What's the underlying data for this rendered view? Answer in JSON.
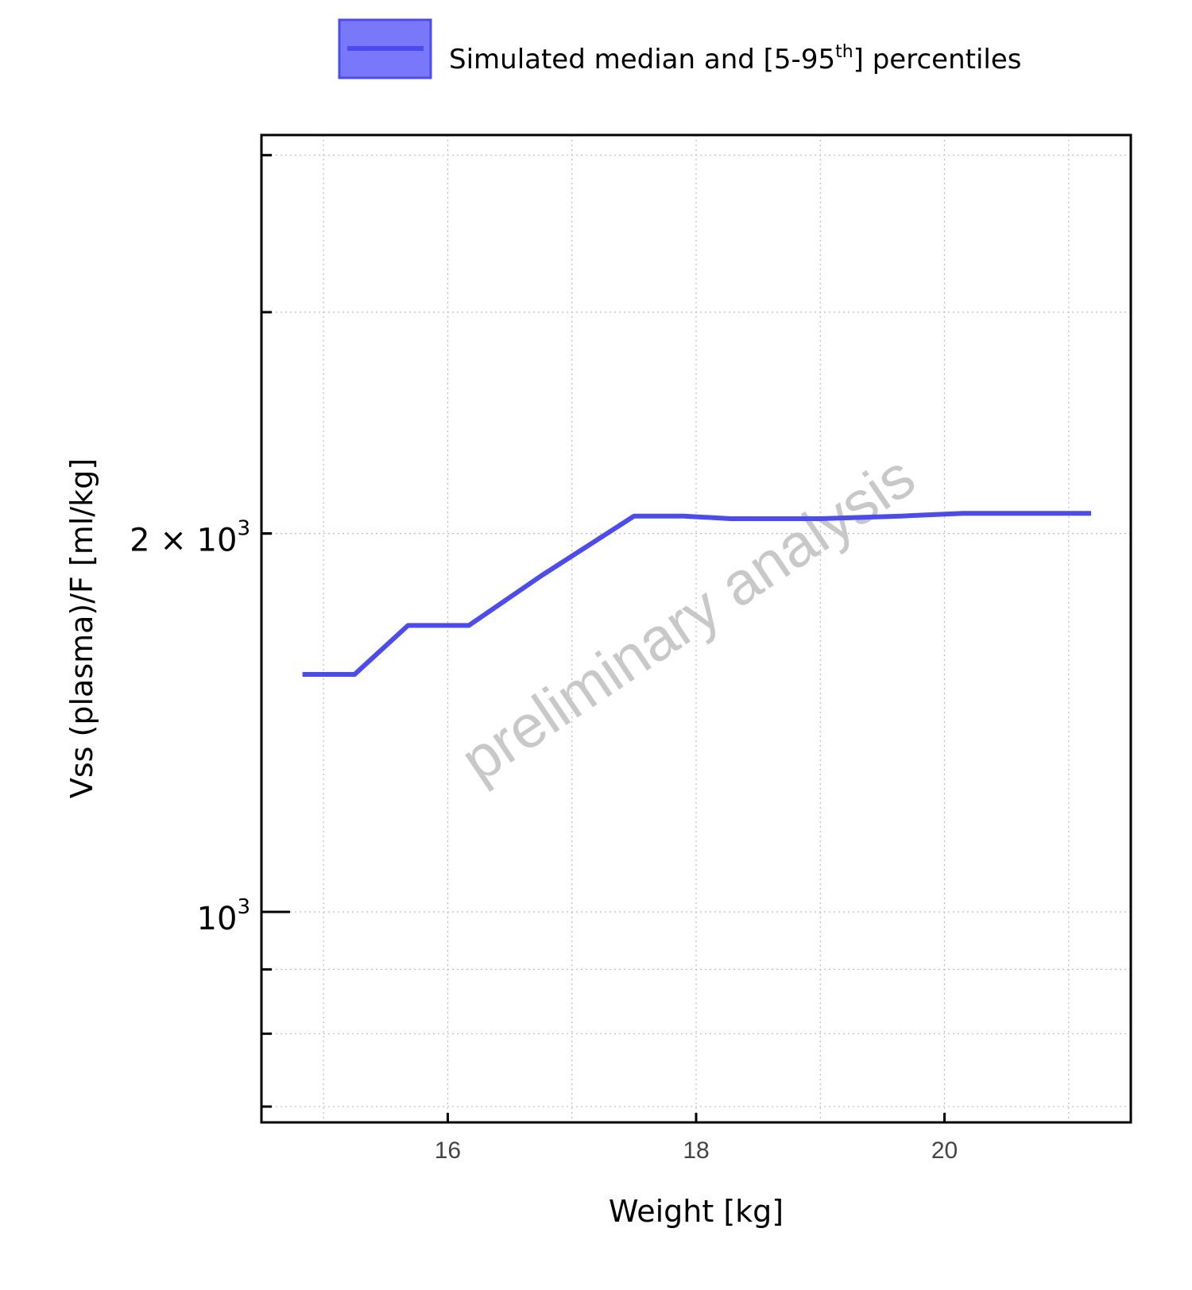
{
  "legend": {
    "label_main": "Simulated median and [5-95",
    "label_sup": "th",
    "label_end": "] percentiles",
    "color": "#4b4bf5",
    "fill_color": "#7878f8"
  },
  "watermark": "preliminary analysis",
  "chart_data": {
    "type": "line",
    "xlabel": "Weight [kg]",
    "ylabel": "Vss (plasma)/F [ml/kg]",
    "x_ticks": [
      16,
      18,
      20
    ],
    "y_ticks": [
      {
        "value": 1000,
        "base": "10",
        "exp": "3"
      },
      {
        "value": 2000,
        "base": "2 × 10",
        "exp": "3"
      }
    ],
    "xlim": [
      14.5,
      21.5
    ],
    "ylim": [
      680,
      4150
    ],
    "y_scale": "log",
    "grid": true,
    "legend_position": "top-center",
    "series": [
      {
        "name": "Simulated median and [5-95th] percentiles",
        "color": "#4b4bf5",
        "x": [
          14.83,
          15.25,
          15.68,
          16.17,
          16.75,
          17.5,
          17.9,
          18.28,
          19.0,
          19.65,
          20.15,
          20.5,
          21.18
        ],
        "y": [
          1545,
          1545,
          1690,
          1690,
          1850,
          2065,
          2065,
          2055,
          2055,
          2065,
          2075,
          2075,
          2075
        ]
      }
    ]
  }
}
